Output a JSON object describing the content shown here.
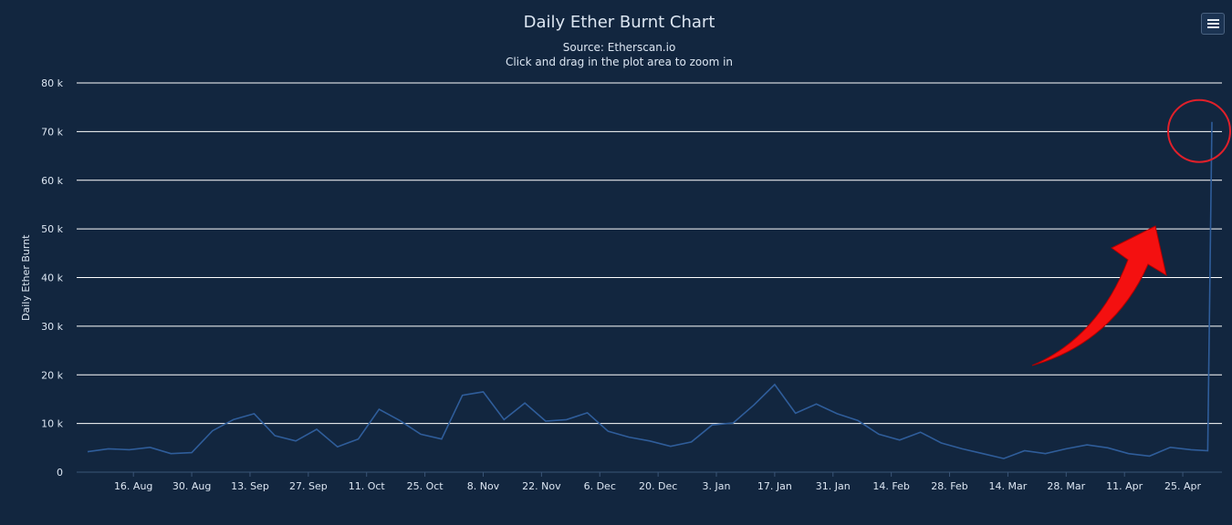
{
  "header": {
    "title": "Daily Ether Burnt Chart",
    "subtitle_source": "Source: Etherscan.io",
    "subtitle_hint": "Click and drag in the plot area to zoom in",
    "menu_icon": "hamburger-menu-icon"
  },
  "colors": {
    "background": "#12263f",
    "gridline": "#ffffff",
    "series_line": "#2f5d9a",
    "text": "#dce6f2",
    "annotation_circle": "#e0202a",
    "annotation_arrow": "#f41010"
  },
  "chart_data": {
    "type": "line",
    "title": "Daily Ether Burnt Chart",
    "subtitle": "Source: Etherscan.io",
    "xlabel": "",
    "ylabel": "Daily Ether Burnt",
    "ylim": [
      0,
      80000
    ],
    "yticks": [
      "0",
      "10 k",
      "20 k",
      "30 k",
      "40 k",
      "50 k",
      "60 k",
      "70 k",
      "80 k"
    ],
    "xticks": [
      "16. Aug",
      "30. Aug",
      "13. Sep",
      "27. Sep",
      "11. Oct",
      "25. Oct",
      "8. Nov",
      "22. Nov",
      "6. Dec",
      "20. Dec",
      "3. Jan",
      "17. Jan",
      "31. Jan",
      "14. Feb",
      "28. Feb",
      "14. Mar",
      "28. Mar",
      "11. Apr",
      "25. Apr"
    ],
    "grid": true,
    "legend": "none",
    "annotations": [
      "red circle around final spike",
      "red arrow pointing to final spike"
    ],
    "series": [
      {
        "x": [
          "2021-08-05",
          "2021-08-10",
          "2021-08-15",
          "2021-08-20",
          "2021-08-25",
          "2021-08-30",
          "2021-09-04",
          "2021-09-09",
          "2021-09-14",
          "2021-09-19",
          "2021-09-24",
          "2021-09-29",
          "2021-10-04",
          "2021-10-09",
          "2021-10-14",
          "2021-10-19",
          "2021-10-24",
          "2021-10-29",
          "2021-11-03",
          "2021-11-08",
          "2021-11-13",
          "2021-11-18",
          "2021-11-23",
          "2021-11-28",
          "2021-12-03",
          "2021-12-08",
          "2021-12-13",
          "2021-12-18",
          "2021-12-23",
          "2021-12-28",
          "2022-01-02",
          "2022-01-07",
          "2022-01-12",
          "2022-01-17",
          "2022-01-22",
          "2022-01-27",
          "2022-02-01",
          "2022-02-06",
          "2022-02-11",
          "2022-02-16",
          "2022-02-21",
          "2022-02-26",
          "2022-03-03",
          "2022-03-08",
          "2022-03-13",
          "2022-03-18",
          "2022-03-23",
          "2022-03-28",
          "2022-04-02",
          "2022-04-07",
          "2022-04-12",
          "2022-04-17",
          "2022-04-22",
          "2022-04-27",
          "2022-05-01",
          "2022-05-02"
        ],
        "values": [
          4200,
          4800,
          4600,
          5100,
          3800,
          4000,
          8500,
          10800,
          12000,
          7500,
          6400,
          8800,
          5200,
          6800,
          12900,
          10600,
          7800,
          6800,
          15800,
          16500,
          10800,
          14200,
          10500,
          10800,
          12200,
          8400,
          7200,
          6400,
          5300,
          6200,
          9700,
          10100,
          13800,
          18000,
          12100,
          14000,
          12000,
          10600,
          7800,
          6600,
          8200,
          6000,
          4800,
          3800,
          2800,
          4400,
          3800,
          4800,
          5600,
          5000,
          3800,
          3300,
          5100,
          4600,
          4400,
          72000
        ]
      }
    ]
  }
}
